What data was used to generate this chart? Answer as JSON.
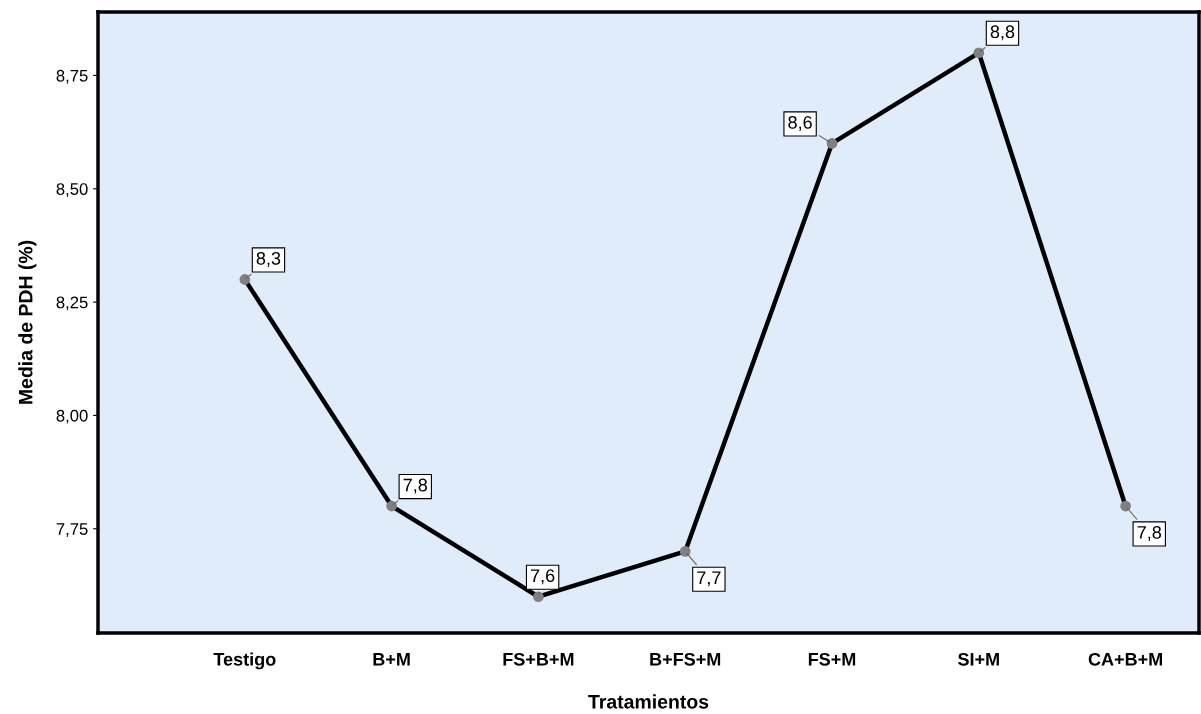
{
  "chart_data": {
    "type": "line",
    "xlabel": "Tratamientos",
    "ylabel": "Media de PDH (%)",
    "categories": [
      "Testigo",
      "B+M",
      "FS+B+M",
      "B+FS+M",
      "FS+M",
      "SI+M",
      "CA+B+M"
    ],
    "series": [
      {
        "color": "#000000",
        "values": [
          8.3,
          7.8,
          7.6,
          7.7,
          8.6,
          8.8,
          7.8
        ],
        "value_labels": [
          "8,3",
          "7,8",
          "7,6",
          "7,7",
          "8,6",
          "8,8",
          "7,8"
        ]
      }
    ],
    "ylim": [
      7.52,
      8.89
    ],
    "yticks": [
      {
        "value": 7.75,
        "label": "7,75"
      },
      {
        "value": 8.0,
        "label": "8,00"
      },
      {
        "value": 8.25,
        "label": "8,25"
      },
      {
        "value": 8.5,
        "label": "8,50"
      },
      {
        "value": 8.75,
        "label": "8,75"
      }
    ],
    "marker": "circle",
    "line_style": "solid",
    "grid": false
  }
}
